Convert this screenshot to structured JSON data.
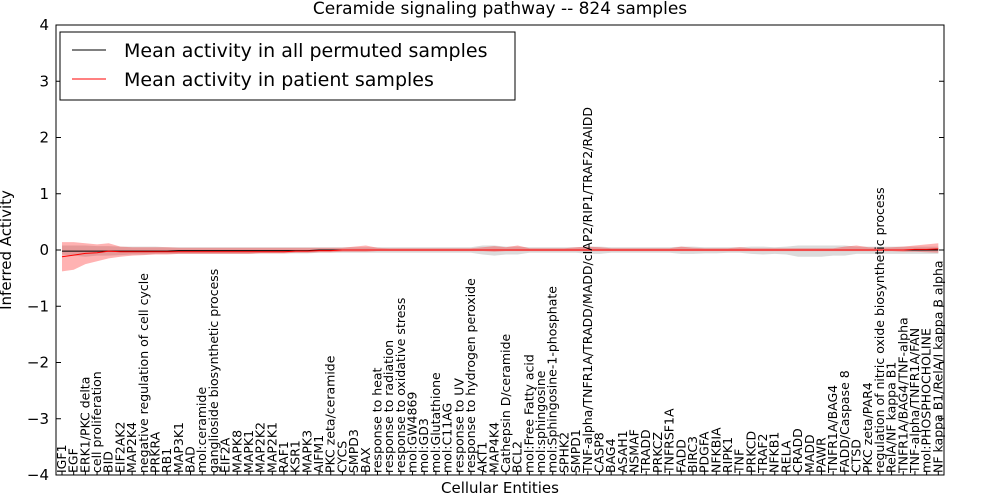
{
  "chart_data": {
    "type": "line",
    "title": "Ceramide signaling pathway -- 824 samples",
    "xlabel": "Cellular Entities",
    "ylabel": "Inferred Activity",
    "ylim": [
      -4,
      4
    ],
    "yticks": [
      "4",
      "3",
      "2",
      "1",
      "0",
      "−1",
      "−2",
      "−3",
      "−4"
    ],
    "ytick_values": [
      4,
      3,
      2,
      1,
      0,
      -1,
      -2,
      -3,
      -4
    ],
    "legend_position": "top-left",
    "categories": [
      "IGF1",
      "EGF",
      "ERK1/PKC delta",
      "cell proliferation",
      "BID",
      "EIF2AK2",
      "MAP2K4",
      "negative regulation of cell cycle",
      "PRKRA",
      "RB1",
      "MAP3K1",
      "BAD",
      "mol:ceramide",
      "ganglioside biosynthetic process",
      "EIF2A",
      "MAPK8",
      "MAPK1",
      "MAP2K2",
      "MAP2K1",
      "RAF1",
      "KSR1",
      "MAPK3",
      "AIFM1",
      "PKC zeta/ceramide",
      "CYCS",
      "SMPD3",
      "BAX",
      "response to heat",
      "response to radiation",
      "response to oxidative stress",
      "mol:GW4869",
      "mol:GD3",
      "mol:Glutathione",
      "mol:C11AG",
      "response to UV",
      "response to hydrogen peroxide",
      "AKT1",
      "MAP4K4",
      "Cathepsin D/ceramide",
      "BCL2",
      "mol:Free Fatty acid",
      "mol:sphingosine",
      "mol:Sphingosine-1-phosphate",
      "SPHK2",
      "SMPD1",
      "TNF-alpha/TNFR1A/TRADD/MADD/cIAP2/RIP1/TRAF2/RAIDD",
      "CASP8",
      "BAG4",
      "ASAH1",
      "NSMAF",
      "TRADD",
      "PRKCZ",
      "TNFRSF1A",
      "FADD",
      "BIRC3",
      "PDGFA",
      "NFKBIA",
      "RIPK1",
      "TNF",
      "PRKCD",
      "TRAF2",
      "NFKB1",
      "RELA",
      "CRADD",
      "MADD",
      "PAWR",
      "TNFR1A/BAG4",
      "FADD/Caspase 8",
      "CTSD",
      "PKC zeta/PAR4",
      "regulation of nitric oxide biosynthetic process",
      "RelA/NF kappa B1",
      "TNFR1A/BAG4/TNF-alpha",
      "TNF-alpha/TNFR1A/FAN",
      "mol:PHOSPHOCHOLINE",
      "NF kappa B1/RelA/I kappa B alpha"
    ],
    "series": [
      {
        "name": "Mean activity in all permuted samples",
        "color": "#000000",
        "values": [
          -0.02,
          -0.02,
          -0.02,
          -0.02,
          -0.02,
          -0.02,
          -0.02,
          -0.02,
          -0.02,
          -0.02,
          -0.01,
          -0.01,
          -0.01,
          -0.01,
          -0.01,
          -0.01,
          -0.01,
          -0.01,
          -0.01,
          -0.01,
          -0.01,
          -0.01,
          0.0,
          0.0,
          0.0,
          0.0,
          0.0,
          0.0,
          0.0,
          0.0,
          0.0,
          0.0,
          0.0,
          0.0,
          0.0,
          0.0,
          0.0,
          0.0,
          0.0,
          0.0,
          0.0,
          0.0,
          0.0,
          0.0,
          0.0,
          0.0,
          0.0,
          0.0,
          0.0,
          0.0,
          0.0,
          0.0,
          0.0,
          0.0,
          0.0,
          0.0,
          0.0,
          0.0,
          0.0,
          0.0,
          0.0,
          0.0,
          0.0,
          0.0,
          0.0,
          0.0,
          0.0,
          0.0,
          0.0,
          0.0,
          0.0,
          0.0,
          0.0,
          0.0,
          0.0,
          0.0
        ],
        "band_low": [
          -0.08,
          -0.1,
          -0.12,
          -0.1,
          -0.1,
          -0.09,
          -0.08,
          -0.08,
          -0.07,
          -0.07,
          -0.07,
          -0.07,
          -0.07,
          -0.07,
          -0.07,
          -0.07,
          -0.07,
          -0.06,
          -0.06,
          -0.06,
          -0.06,
          -0.06,
          -0.05,
          -0.05,
          -0.05,
          -0.05,
          -0.05,
          -0.05,
          -0.05,
          -0.05,
          -0.05,
          -0.05,
          -0.05,
          -0.05,
          -0.05,
          -0.05,
          -0.08,
          -0.1,
          -0.08,
          -0.08,
          -0.05,
          -0.05,
          -0.05,
          -0.05,
          -0.05,
          -0.07,
          -0.07,
          -0.05,
          -0.05,
          -0.05,
          -0.05,
          -0.05,
          -0.05,
          -0.07,
          -0.07,
          -0.06,
          -0.06,
          -0.05,
          -0.05,
          -0.07,
          -0.08,
          -0.07,
          -0.08,
          -0.12,
          -0.12,
          -0.12,
          -0.1,
          -0.1,
          -0.07,
          -0.07,
          -0.07,
          -0.07,
          -0.07,
          -0.07,
          -0.07,
          -0.07
        ],
        "band_high": [
          0.08,
          0.08,
          0.08,
          0.07,
          0.07,
          0.06,
          0.06,
          0.06,
          0.06,
          0.05,
          0.05,
          0.05,
          0.05,
          0.05,
          0.05,
          0.05,
          0.05,
          0.05,
          0.05,
          0.05,
          0.05,
          0.05,
          0.05,
          0.05,
          0.05,
          0.05,
          0.05,
          0.05,
          0.05,
          0.05,
          0.05,
          0.05,
          0.05,
          0.05,
          0.05,
          0.05,
          0.08,
          0.08,
          0.06,
          0.06,
          0.05,
          0.05,
          0.05,
          0.05,
          0.05,
          0.06,
          0.06,
          0.05,
          0.05,
          0.05,
          0.05,
          0.05,
          0.05,
          0.06,
          0.06,
          0.05,
          0.05,
          0.05,
          0.05,
          0.06,
          0.06,
          0.05,
          0.06,
          0.08,
          0.08,
          0.08,
          0.08,
          0.08,
          0.06,
          0.06,
          0.06,
          0.06,
          0.06,
          0.06,
          0.06,
          0.06
        ]
      },
      {
        "name": "Mean activity in patient samples",
        "color": "#ff0000",
        "values": [
          -0.12,
          -0.09,
          -0.06,
          -0.05,
          -0.02,
          -0.03,
          -0.03,
          -0.03,
          -0.03,
          -0.03,
          -0.03,
          -0.03,
          -0.03,
          -0.03,
          -0.03,
          -0.03,
          -0.03,
          -0.03,
          -0.03,
          -0.03,
          -0.02,
          -0.02,
          -0.01,
          -0.01,
          0.0,
          0.0,
          0.0,
          0.0,
          0.0,
          0.0,
          0.0,
          0.0,
          0.0,
          0.0,
          0.0,
          0.0,
          0.0,
          0.0,
          0.0,
          0.0,
          0.0,
          0.0,
          0.0,
          0.0,
          0.0,
          0.0,
          0.0,
          0.0,
          0.0,
          0.0,
          0.0,
          0.0,
          0.0,
          0.0,
          0.0,
          0.0,
          0.0,
          0.0,
          0.0,
          0.0,
          0.0,
          0.0,
          0.0,
          0.0,
          0.0,
          0.0,
          0.0,
          0.0,
          0.0,
          0.0,
          0.0,
          0.0,
          0.0,
          0.01,
          0.01,
          0.02
        ],
        "band_low": [
          -0.38,
          -0.35,
          -0.25,
          -0.2,
          -0.15,
          -0.12,
          -0.1,
          -0.09,
          -0.08,
          -0.08,
          -0.07,
          -0.07,
          -0.07,
          -0.07,
          -0.07,
          -0.07,
          -0.07,
          -0.06,
          -0.06,
          -0.06,
          -0.05,
          -0.05,
          -0.04,
          -0.04,
          -0.03,
          -0.03,
          -0.03,
          -0.02,
          -0.02,
          -0.02,
          -0.02,
          -0.02,
          -0.02,
          -0.02,
          -0.02,
          -0.02,
          -0.02,
          -0.03,
          -0.02,
          -0.02,
          -0.02,
          -0.02,
          -0.02,
          -0.02,
          -0.02,
          -0.02,
          -0.02,
          -0.02,
          -0.02,
          -0.02,
          -0.02,
          -0.02,
          -0.02,
          -0.02,
          -0.02,
          -0.02,
          -0.02,
          -0.02,
          -0.02,
          -0.02,
          -0.02,
          -0.02,
          -0.02,
          -0.02,
          -0.02,
          -0.02,
          -0.02,
          -0.02,
          -0.02,
          -0.02,
          -0.02,
          -0.02,
          -0.03,
          -0.03,
          -0.04,
          -0.05
        ],
        "band_high": [
          0.14,
          0.14,
          0.12,
          0.1,
          0.12,
          0.06,
          0.05,
          0.05,
          0.05,
          0.05,
          0.04,
          0.04,
          0.04,
          0.04,
          0.04,
          0.04,
          0.04,
          0.04,
          0.04,
          0.04,
          0.04,
          0.04,
          0.04,
          0.04,
          0.04,
          0.06,
          0.08,
          0.04,
          0.03,
          0.03,
          0.03,
          0.03,
          0.03,
          0.03,
          0.03,
          0.03,
          0.05,
          0.07,
          0.05,
          0.08,
          0.03,
          0.03,
          0.03,
          0.03,
          0.05,
          0.06,
          0.05,
          0.03,
          0.03,
          0.03,
          0.03,
          0.03,
          0.03,
          0.06,
          0.04,
          0.03,
          0.03,
          0.03,
          0.05,
          0.03,
          0.03,
          0.03,
          0.03,
          0.03,
          0.03,
          0.03,
          0.03,
          0.06,
          0.08,
          0.05,
          0.04,
          0.05,
          0.06,
          0.08,
          0.1,
          0.12
        ]
      }
    ]
  }
}
